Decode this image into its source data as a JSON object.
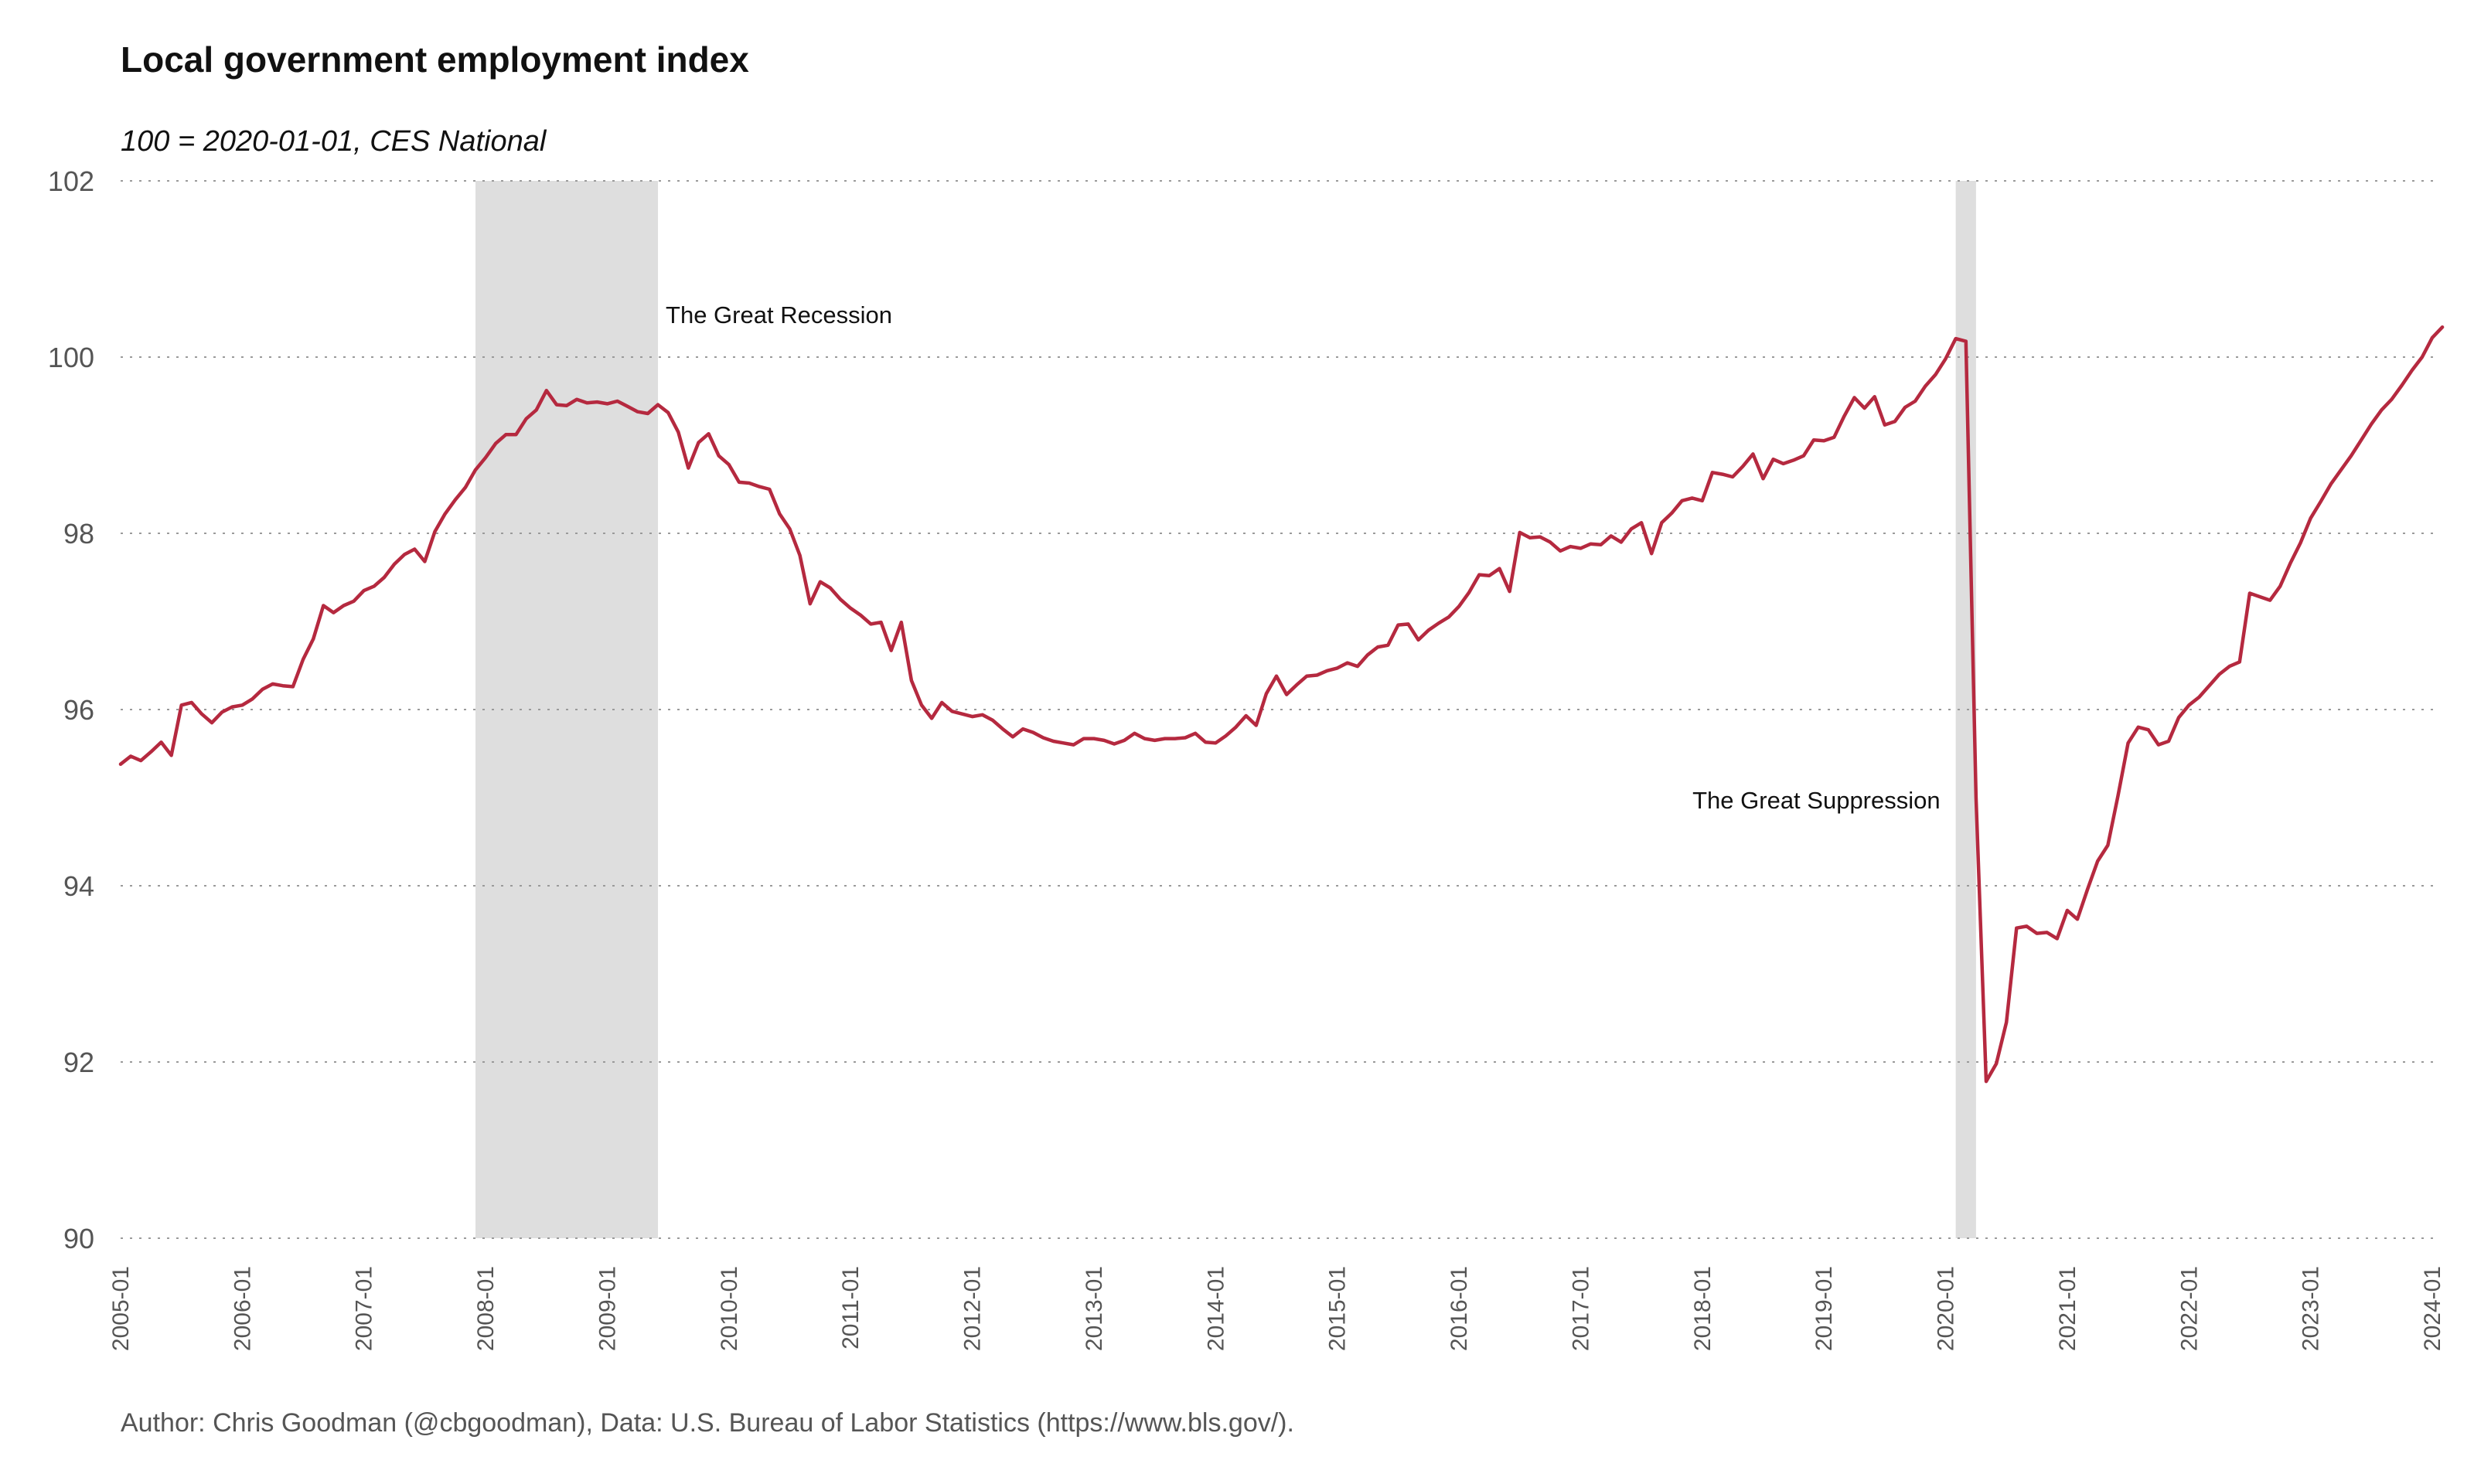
{
  "chart_data": {
    "type": "line",
    "title": "Local government employment index",
    "subtitle": "100 = 2020-01-01, CES National",
    "caption": "Author: Chris Goodman (@cbgoodman), Data: U.S. Bureau of Labor Statistics (https://www.bls.gov/).",
    "xlim": [
      "2005-01",
      "2024-01"
    ],
    "ylim": [
      90,
      102
    ],
    "yticks": [
      90,
      92,
      94,
      96,
      98,
      100,
      102
    ],
    "xticks": [
      "2005-01",
      "2006-01",
      "2007-01",
      "2008-01",
      "2009-01",
      "2010-01",
      "2011-01",
      "2012-01",
      "2013-01",
      "2014-01",
      "2015-01",
      "2016-01",
      "2017-01",
      "2018-01",
      "2019-01",
      "2020-01",
      "2021-01",
      "2022-01",
      "2023-01",
      "2024-01"
    ],
    "grid": "horizontal dotted",
    "line_color": "#b5293f",
    "shade_color": "#dedede",
    "recessions": [
      {
        "start": "2007-12",
        "end": "2009-06",
        "label": "The Great Recession"
      },
      {
        "start": "2020-02",
        "end": "2020-04",
        "label": "The Great Suppression"
      }
    ],
    "series": [
      {
        "start": "2005-01",
        "values": [
          95.38,
          95.47,
          95.42,
          95.52,
          95.63,
          95.48,
          96.05,
          96.08,
          95.95,
          95.85,
          95.97,
          96.03,
          96.05,
          96.12,
          96.23,
          96.29,
          96.27,
          96.26,
          96.57,
          96.8,
          97.18,
          97.1,
          97.18,
          97.23,
          97.35,
          97.4,
          97.5,
          97.65,
          97.76,
          97.82,
          97.68,
          98.02,
          98.22,
          98.38,
          98.52,
          98.72,
          98.86,
          99.02,
          99.12,
          99.12,
          99.3,
          99.4,
          99.62,
          99.46,
          99.45,
          99.52,
          99.48,
          99.49,
          99.47,
          99.5,
          99.44,
          99.38,
          99.36,
          99.46,
          99.37,
          99.15,
          98.74,
          99.03,
          99.13,
          98.88,
          98.78,
          98.58,
          98.57,
          98.53,
          98.5,
          98.22,
          98.05,
          97.75,
          97.2,
          97.45,
          97.38,
          97.25,
          97.15,
          97.07,
          96.97,
          96.99,
          96.67,
          96.99,
          96.33,
          96.05,
          95.9,
          96.08,
          95.98,
          95.95,
          95.92,
          95.94,
          95.88,
          95.78,
          95.69,
          95.78,
          95.74,
          95.68,
          95.64,
          95.62,
          95.6,
          95.67,
          95.67,
          95.65,
          95.61,
          95.65,
          95.73,
          95.67,
          95.65,
          95.67,
          95.67,
          95.68,
          95.73,
          95.63,
          95.62,
          95.7,
          95.8,
          95.93,
          95.82,
          96.18,
          96.38,
          96.17,
          96.28,
          96.38,
          96.39,
          96.44,
          96.47,
          96.53,
          96.49,
          96.62,
          96.71,
          96.73,
          96.96,
          96.97,
          96.79,
          96.9,
          96.98,
          97.05,
          97.17,
          97.33,
          97.53,
          97.52,
          97.6,
          97.34,
          98.01,
          97.95,
          97.96,
          97.9,
          97.8,
          97.85,
          97.83,
          97.88,
          97.87,
          97.97,
          97.9,
          98.05,
          98.12,
          97.77,
          98.12,
          98.23,
          98.37,
          98.4,
          98.37,
          98.69,
          98.67,
          98.64,
          98.76,
          98.9,
          98.62,
          98.84,
          98.79,
          98.83,
          98.88,
          99.06,
          99.05,
          99.09,
          99.33,
          99.54,
          99.42,
          99.55,
          99.23,
          99.27,
          99.43,
          99.5,
          99.67,
          99.8,
          99.98,
          100.21,
          100.18,
          95.0,
          91.78,
          91.98,
          92.45,
          93.52,
          93.54,
          93.46,
          93.47,
          93.4,
          93.72,
          93.62,
          93.96,
          94.28,
          94.46,
          95.02,
          95.62,
          95.8,
          95.77,
          95.6,
          95.64,
          95.91,
          96.05,
          96.14,
          96.27,
          96.4,
          96.49,
          96.54,
          97.32,
          97.28,
          97.24,
          97.4,
          97.66,
          97.89,
          98.17,
          98.36,
          98.56,
          98.72,
          98.88,
          99.06,
          99.24,
          99.4,
          99.52,
          99.68,
          99.85,
          100.0,
          100.22,
          100.34
        ]
      }
    ]
  }
}
